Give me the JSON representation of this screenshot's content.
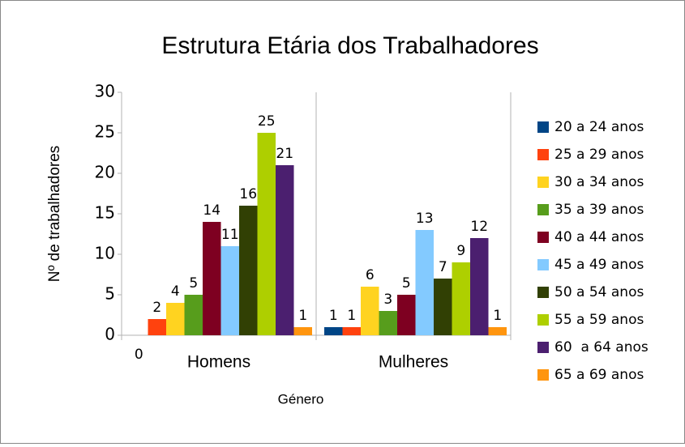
{
  "chart_data": {
    "type": "bar",
    "title": "Estrutura Etária dos Trabalhadores",
    "x_label": "Género",
    "y_label": "Nº de trabalhadores",
    "categories": [
      "Homens",
      "Mulheres"
    ],
    "series": [
      {
        "name": "20 a 24 anos",
        "color": "#004586",
        "values": [
          0,
          1
        ]
      },
      {
        "name": "25 a 29 anos",
        "color": "#ff420e",
        "values": [
          2,
          1
        ]
      },
      {
        "name": "30 a 34 anos",
        "color": "#ffd320",
        "values": [
          4,
          6
        ]
      },
      {
        "name": "35 a 39 anos",
        "color": "#579d1c",
        "values": [
          5,
          3
        ]
      },
      {
        "name": "40 a 44 anos",
        "color": "#7e0021",
        "values": [
          14,
          5
        ]
      },
      {
        "name": "45 a 49 anos",
        "color": "#83caff",
        "values": [
          11,
          13
        ]
      },
      {
        "name": "50 a 54 anos",
        "color": "#314004",
        "values": [
          16,
          7
        ]
      },
      {
        "name": "55 a 59 anos",
        "color": "#aecf00",
        "values": [
          25,
          9
        ]
      },
      {
        "name": "60  a 64 anos",
        "color": "#4b1f6f",
        "values": [
          21,
          12
        ]
      },
      {
        "name": "65 a 69 anos",
        "color": "#ff950e",
        "values": [
          1,
          1
        ]
      }
    ],
    "ylim": [
      0,
      30
    ],
    "yticks": [
      0,
      5,
      10,
      15,
      20,
      25,
      30
    ],
    "legend": "right"
  }
}
